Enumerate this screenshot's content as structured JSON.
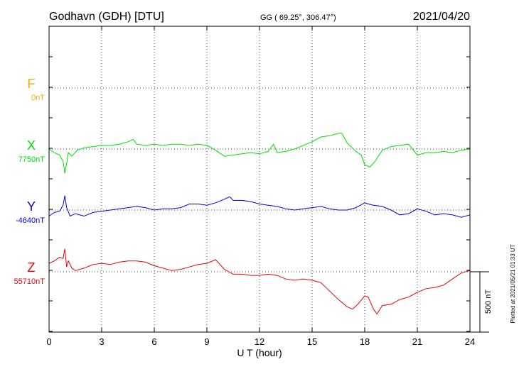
{
  "header": {
    "station": "Godhavn (GDH)  [DTU]",
    "coords": "GG ( 69.25°, 306.47°)",
    "date": "2021/04/20"
  },
  "side_note": "Plotted at 2021/05/21 01:33 UT",
  "scale_bar_label": "500 nT",
  "colors": {
    "F": "#ffa500",
    "X": "#00e000",
    "Y": "#0000ee",
    "Z": "#ee0000",
    "axis": "#000000",
    "grid": "#000000"
  },
  "chart_data": {
    "type": "line",
    "xlabel": "U T (hour)",
    "xlim": [
      0,
      24
    ],
    "x_ticks": [
      "0",
      "3",
      "6",
      "9",
      "12",
      "15",
      "18",
      "21",
      "24"
    ],
    "grid": true,
    "scale_bar_nT": 500,
    "series": [
      {
        "name": "F",
        "baseline_label": "0nT",
        "color": "#ffa500",
        "x": [],
        "y": []
      },
      {
        "name": "X",
        "baseline_label": "7750nT",
        "color": "#00e000",
        "x": [
          0,
          0.3,
          0.6,
          0.8,
          0.9,
          1.0,
          1.1,
          1.3,
          1.6,
          2.0,
          2.5,
          3.0,
          3.5,
          4.0,
          4.5,
          4.8,
          5.0,
          5.5,
          6.0,
          6.5,
          7.0,
          7.5,
          8.0,
          8.5,
          9.0,
          9.5,
          10.0,
          10.5,
          11.0,
          11.5,
          12.0,
          12.5,
          12.8,
          13.0,
          13.5,
          14.0,
          14.5,
          15.0,
          15.5,
          16.0,
          16.5,
          16.7,
          17.0,
          17.5,
          17.8,
          18.0,
          18.3,
          18.6,
          19.0,
          19.5,
          20.0,
          20.5,
          21.0,
          21.5,
          22.0,
          22.5,
          23.0,
          23.5,
          24.0
        ],
        "y": [
          7750,
          7720,
          7700,
          7650,
          7550,
          7630,
          7720,
          7690,
          7740,
          7760,
          7770,
          7780,
          7780,
          7790,
          7810,
          7830,
          7790,
          7780,
          7790,
          7780,
          7790,
          7790,
          7780,
          7790,
          7780,
          7740,
          7690,
          7700,
          7710,
          7720,
          7710,
          7730,
          7790,
          7720,
          7730,
          7750,
          7780,
          7810,
          7850,
          7860,
          7880,
          7880,
          7800,
          7730,
          7700,
          7620,
          7600,
          7650,
          7740,
          7770,
          7780,
          7790,
          7700,
          7720,
          7720,
          7730,
          7720,
          7740,
          7750
        ]
      },
      {
        "name": "Y",
        "baseline_label": "-4640nT",
        "color": "#0000ee",
        "x": [
          0,
          0.3,
          0.6,
          0.8,
          0.9,
          1.0,
          1.2,
          1.5,
          2.0,
          2.5,
          3.0,
          3.5,
          4.0,
          4.5,
          5.0,
          5.5,
          6.0,
          6.5,
          7.0,
          7.5,
          8.0,
          8.5,
          9.0,
          9.5,
          10.0,
          10.3,
          10.5,
          11.0,
          11.5,
          12.0,
          12.5,
          13.0,
          13.5,
          14.0,
          14.5,
          15.0,
          15.5,
          16.0,
          16.5,
          17.0,
          17.5,
          18.0,
          18.2,
          18.5,
          19.0,
          19.5,
          20.0,
          20.5,
          21.0,
          21.5,
          22.0,
          22.5,
          23.0,
          23.5,
          24.0
        ],
        "y": [
          -4690,
          -4660,
          -4650,
          -4600,
          -4520,
          -4620,
          -4690,
          -4670,
          -4690,
          -4660,
          -4650,
          -4640,
          -4630,
          -4620,
          -4610,
          -4620,
          -4640,
          -4630,
          -4630,
          -4620,
          -4590,
          -4590,
          -4600,
          -4580,
          -4550,
          -4530,
          -4560,
          -4560,
          -4570,
          -4590,
          -4600,
          -4610,
          -4630,
          -4640,
          -4630,
          -4620,
          -4610,
          -4630,
          -4640,
          -4640,
          -4620,
          -4580,
          -4590,
          -4600,
          -4610,
          -4640,
          -4680,
          -4670,
          -4630,
          -4650,
          -4680,
          -4670,
          -4680,
          -4700,
          -4680
        ]
      },
      {
        "name": "Z",
        "baseline_label": "55710nT",
        "color": "#ee0000",
        "x": [
          0,
          0.3,
          0.6,
          0.8,
          0.9,
          1.0,
          1.1,
          1.3,
          1.5,
          2.0,
          2.5,
          3.0,
          3.5,
          4.0,
          4.5,
          5.0,
          5.5,
          6.0,
          6.5,
          7.0,
          7.5,
          8.0,
          8.5,
          9.0,
          9.5,
          10.0,
          10.5,
          11.0,
          11.5,
          12.0,
          12.5,
          13.0,
          13.5,
          14.0,
          14.5,
          15.0,
          15.5,
          16.0,
          16.5,
          17.0,
          17.3,
          17.6,
          18.0,
          18.2,
          18.5,
          18.7,
          19.0,
          19.5,
          20.0,
          20.5,
          21.0,
          21.5,
          22.0,
          22.5,
          23.0,
          23.5,
          24.0
        ],
        "y": [
          55780,
          55800,
          55830,
          55820,
          55900,
          55750,
          55800,
          55740,
          55720,
          55740,
          55770,
          55780,
          55770,
          55790,
          55800,
          55800,
          55790,
          55760,
          55740,
          55720,
          55730,
          55750,
          55770,
          55780,
          55810,
          55730,
          55690,
          55690,
          55680,
          55680,
          55690,
          55680,
          55650,
          55640,
          55650,
          55640,
          55620,
          55550,
          55480,
          55420,
          55400,
          55440,
          55510,
          55500,
          55400,
          55360,
          55430,
          55440,
          55480,
          55500,
          55540,
          55570,
          55580,
          55600,
          55650,
          55700,
          55720
        ]
      }
    ]
  }
}
